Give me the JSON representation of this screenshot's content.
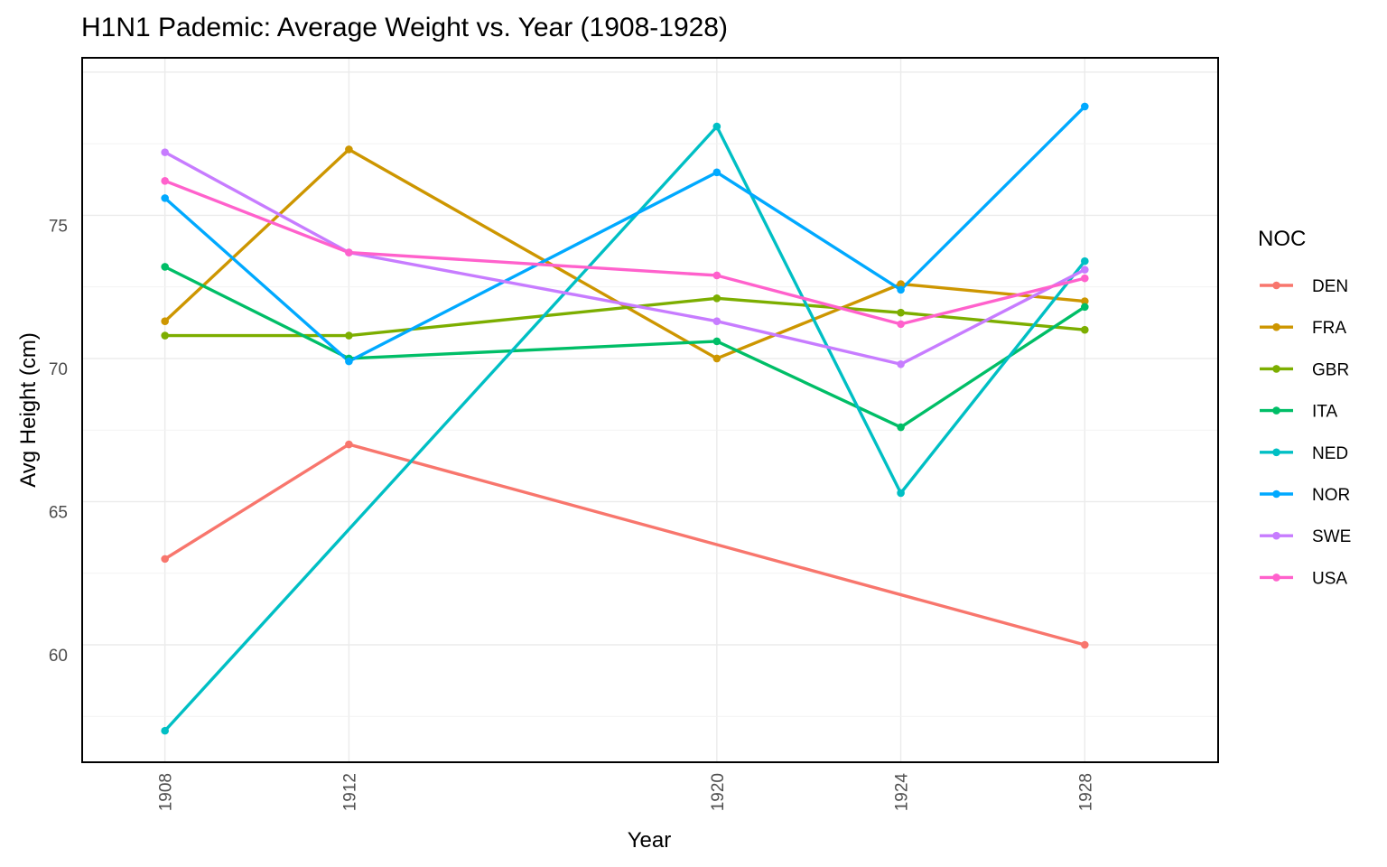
{
  "chart_data": {
    "type": "line",
    "title": "H1N1 Pademic: Average Weight vs. Year (1908-1928)",
    "xlabel": "Year",
    "ylabel": "Avg Height (cm)",
    "x": [
      "1908",
      "1912",
      "1920",
      "1924",
      "1928"
    ],
    "ylim": [
      55.9,
      80.5
    ],
    "yticks": [
      "60",
      "65",
      "70",
      "75"
    ],
    "legend_title": "NOC",
    "legend_position": "right",
    "grid": true,
    "series": [
      {
        "name": "DEN",
        "color": "#F8766D",
        "values": [
          63.0,
          67.0,
          null,
          null,
          60.0
        ]
      },
      {
        "name": "FRA",
        "color": "#CD9600",
        "values": [
          71.3,
          77.3,
          70.0,
          72.6,
          72.0
        ]
      },
      {
        "name": "GBR",
        "color": "#7CAE00",
        "values": [
          70.8,
          70.8,
          72.1,
          71.6,
          71.0
        ]
      },
      {
        "name": "ITA",
        "color": "#00BE67",
        "values": [
          73.2,
          70.0,
          70.6,
          67.6,
          71.8
        ]
      },
      {
        "name": "NED",
        "color": "#00BFC4",
        "values": [
          57.0,
          null,
          78.1,
          65.3,
          73.4
        ]
      },
      {
        "name": "NOR",
        "color": "#00A9FF",
        "values": [
          75.6,
          69.9,
          76.5,
          72.4,
          78.8
        ]
      },
      {
        "name": "SWE",
        "color": "#C77CFF",
        "values": [
          77.2,
          73.7,
          71.3,
          69.8,
          73.1
        ]
      },
      {
        "name": "USA",
        "color": "#FF61CC",
        "values": [
          76.2,
          73.7,
          72.9,
          71.2,
          72.8
        ]
      }
    ]
  }
}
